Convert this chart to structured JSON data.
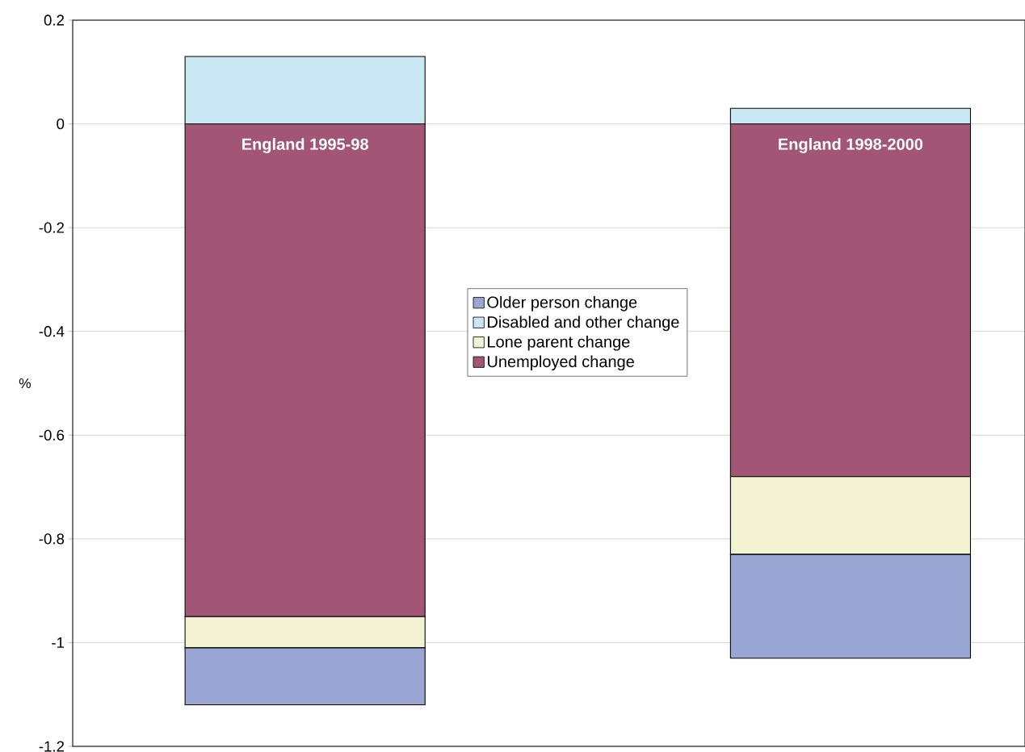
{
  "chart_data": {
    "type": "bar",
    "stacked": true,
    "ylabel": "%",
    "categories": [
      "England 1995-98",
      "England 1998-2000"
    ],
    "series": [
      {
        "name": "Unemployed change",
        "color": "#a25574",
        "values": [
          -0.95,
          -0.68
        ]
      },
      {
        "name": "Lone parent change",
        "color": "#f3f2d3",
        "values": [
          -0.06,
          -0.15
        ]
      },
      {
        "name": "Disabled and other change",
        "color": "#c9e8f3",
        "values": [
          0.13,
          0.03
        ]
      },
      {
        "name": "Older person change",
        "color": "#9aa6d3",
        "values": [
          -0.11,
          -0.2
        ]
      }
    ],
    "ylim": [
      -1.2,
      0.2
    ],
    "yticks": [
      -1.2,
      -1,
      -0.8,
      -0.6,
      -0.4,
      -0.2,
      0,
      0.2
    ],
    "grid": "y",
    "legend": "center",
    "tick_labels": "y"
  }
}
